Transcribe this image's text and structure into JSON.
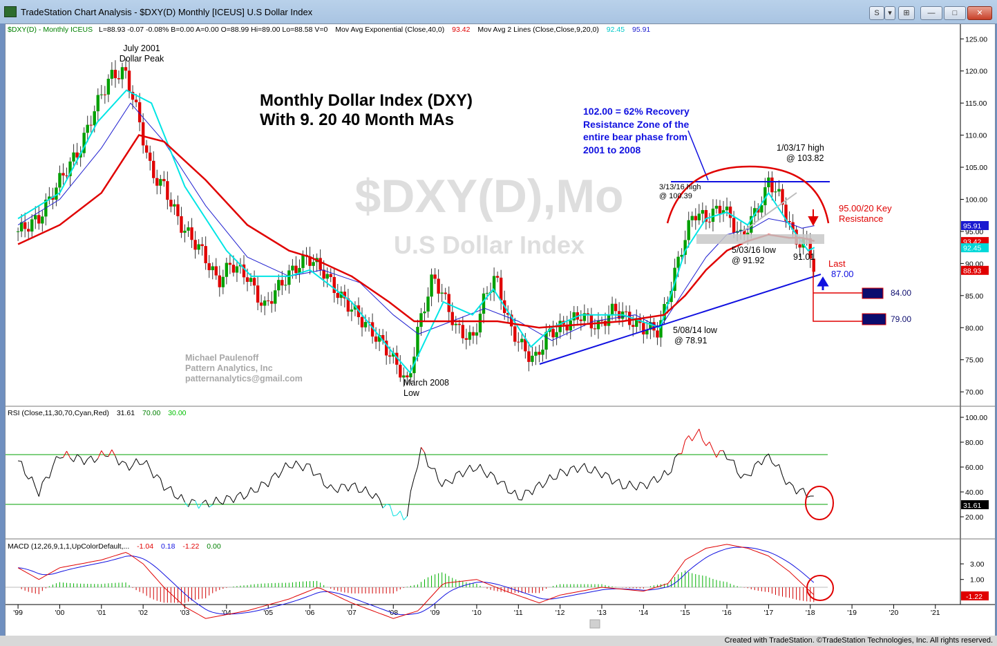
{
  "window": {
    "title": "TradeStation Chart Analysis - $DXY(D) Monthly [ICEUS] U.S Dollar Index",
    "buttons": [
      "S",
      "▾",
      "⊞",
      "—",
      "□",
      "✕"
    ]
  },
  "status_bar": "Created with TradeStation. ©TradeStation Technologies, Inc. All rights reserved.",
  "colors": {
    "up": "#00a000",
    "down": "#e00000",
    "ma9": "#00e5e5",
    "ma20": "#2020d0",
    "ma40": "#e00000",
    "annotation_blue": "#1010e0",
    "annotation_red": "#e00000",
    "target_box": "#0c0c6e"
  },
  "price_panel": {
    "header": {
      "symbol": "$DXY(D) - Monthly  ICEUS",
      "quote": "L=88.93  -0.07  -0.08%  B=0.00  A=0.00  O=88.99  Hi=89.00  Lo=88.58  V=0",
      "ma_label": "Mov Avg Exponential (Close,40,0)",
      "ma_value": "93.42",
      "ma2_label": "Mov Avg 2 Lines (Close,Close,9,20,0)",
      "ma2_value_a": "92.45",
      "ma2_value_b": "95.91"
    },
    "watermark_symbol": "$DXY(D),Mo",
    "watermark_name": "U.S Dollar Index",
    "chart_title_line1": "Monthly Dollar Index (DXY)",
    "chart_title_line2": "With 9. 20 40 Month MAs",
    "author": [
      "Michael Paulenoff",
      "Pattern Analytics, Inc",
      "patternanalytics@gmail.com"
    ],
    "annotations": {
      "peak": [
        "July 2001",
        "Dollar Peak"
      ],
      "low2008": [
        "March 2008",
        "Low"
      ],
      "recovery": [
        "102.00 = 62% Recovery",
        "Resistance Zone of the",
        "entire bear phase from",
        "2001 to 2008"
      ],
      "high2017": [
        "1/03/17 high",
        "@ 103.82"
      ],
      "high2016": [
        "3/13/16 high",
        "@ 100.39"
      ],
      "low2016": [
        "5/03/16 low",
        "@ 91.92"
      ],
      "low2014": [
        "5/08/14 low",
        "@ 78.91"
      ],
      "key_resistance": [
        "95.00/20 Key",
        "Resistance"
      ],
      "low91": "91.01",
      "last": "Last",
      "target87": "87.00",
      "target84": "84.00",
      "target79": "79.00"
    },
    "axis_badges": [
      {
        "text": "95.91",
        "color": "#1a1ad0"
      },
      {
        "text": "93.42",
        "color": "#e00000"
      },
      {
        "text": "92.45",
        "color": "#00d8d8"
      },
      {
        "text": "88.93",
        "color": "#e00000"
      }
    ]
  },
  "rsi_panel": {
    "header_label": "RSI (Close,11,30,70,Cyan,Red)",
    "header_value": "31.61",
    "overbought": "70.00",
    "oversold": "30.00",
    "last_badge": "31.61"
  },
  "macd_panel": {
    "header_label": "MACD (12,26,9,1,1,UpColorDefault,...",
    "macd_value": "-1.04",
    "signal_value": "0.18",
    "hist_value": "-1.22",
    "zero_value": "0.00",
    "last_badge": "-1.22"
  },
  "chart_data": {
    "type": "line",
    "title": "Monthly Dollar Index (DXY)",
    "subtitle": "With 9. 20 40 Month MAs",
    "price_axis": {
      "ticks": [
        "125.00",
        "120.00",
        "115.00",
        "110.00",
        "105.00",
        "100.00",
        "95.00",
        "90.00",
        "85.00",
        "80.00",
        "75.00",
        "70.00"
      ],
      "ylim": [
        67,
        126
      ]
    },
    "rsi_axis": {
      "ticks": [
        "100.00",
        "80.00",
        "60.00",
        "40.00",
        "20.00"
      ],
      "ylim": [
        5,
        105
      ]
    },
    "macd_axis": {
      "ticks": [
        "3.00",
        "1.00"
      ]
    },
    "x_ticks": [
      "'99",
      "'00",
      "'01",
      "'02",
      "'03",
      "'04",
      "'05",
      "'06",
      "'07",
      "'08",
      "'09",
      "'10",
      "'11",
      "'12",
      "'13",
      "'14",
      "'15",
      "'16",
      "'17",
      "'18",
      "'19",
      "'20",
      "'21"
    ],
    "x_range": [
      1998.7,
      2021.6
    ],
    "series": [
      {
        "kind": "close",
        "x": [
          1999.0,
          1999.5,
          2000.0,
          2000.5,
          2000.83,
          2001.2,
          2001.55,
          2001.8,
          2002.2,
          2002.5,
          2002.9,
          2003.4,
          2003.8,
          2004.1,
          2004.5,
          2004.9,
          2005.2,
          2005.6,
          2005.95,
          2006.3,
          2006.7,
          2007.0,
          2007.4,
          2007.8,
          2008.2,
          2008.35,
          2008.6,
          2008.95,
          2009.2,
          2009.5,
          2009.9,
          2010.2,
          2010.45,
          2010.8,
          2011.2,
          2011.4,
          2011.7,
          2012.0,
          2012.5,
          2012.9,
          2013.3,
          2013.7,
          2014.0,
          2014.36,
          2014.6,
          2014.9,
          2015.2,
          2015.5,
          2015.9,
          2016.2,
          2016.35,
          2016.6,
          2016.9,
          2017.0,
          2017.3,
          2017.6,
          2017.8,
          2017.95,
          2018.08
        ],
        "values": [
          95,
          97,
          103,
          108,
          114,
          119,
          120,
          115,
          104,
          102,
          96,
          92,
          87,
          90,
          88,
          83,
          86,
          89,
          91,
          89,
          85,
          83,
          80,
          77,
          73,
          71,
          80,
          88,
          85,
          80,
          78,
          85,
          88,
          80,
          76,
          75,
          79,
          80,
          82,
          80,
          83,
          81,
          80,
          79.5,
          85,
          92,
          98,
          97,
          99,
          95.5,
          94,
          97,
          100.5,
          103,
          100,
          94,
          93,
          93.5,
          89
        ]
      },
      {
        "name": "Mov Avg Exponential (Close,40,0)",
        "x": [
          1999.0,
          2000.0,
          2001.0,
          2001.9,
          2002.5,
          2003.5,
          2004.5,
          2005.5,
          2006.0,
          2007.0,
          2007.9,
          2008.5,
          2009.5,
          2010.5,
          2011.5,
          2012.5,
          2013.5,
          2014.5,
          2015.0,
          2015.5,
          2016.0,
          2016.5,
          2017.0,
          2017.5,
          2017.8,
          2018.1
        ],
        "values": [
          93,
          96,
          101,
          110,
          109,
          103,
          96,
          92,
          91,
          88,
          84,
          81,
          81,
          81,
          80,
          80.5,
          81,
          82,
          85,
          89,
          92,
          93.5,
          94.5,
          94,
          94,
          93.5
        ]
      },
      {
        "name": "Mov Avg 9",
        "x": [
          1999.0,
          2000.0,
          2000.9,
          2001.6,
          2002.2,
          2003.0,
          2004.0,
          2004.6,
          2005.5,
          2006.0,
          2007.0,
          2008.0,
          2008.4,
          2009.2,
          2009.9,
          2010.4,
          2011.3,
          2011.8,
          2012.5,
          2013.5,
          2014.4,
          2015.0,
          2015.5,
          2016.0,
          2016.5,
          2017.0,
          2017.5,
          2017.95,
          2018.1
        ],
        "values": [
          97,
          101,
          112,
          117,
          115,
          102,
          92,
          88,
          88,
          89,
          84,
          76,
          73,
          84,
          82,
          86,
          77,
          80,
          82,
          82,
          80,
          92,
          97,
          98,
          96,
          101,
          96,
          92,
          92.5
        ]
      },
      {
        "name": "Mov Avg 20",
        "x": [
          1999.0,
          2000.0,
          2001.0,
          2001.7,
          2002.5,
          2003.5,
          2004.5,
          2005.5,
          2006.3,
          2007.2,
          2008.0,
          2008.6,
          2009.4,
          2010.2,
          2011.0,
          2011.8,
          2012.8,
          2013.8,
          2014.4,
          2015.0,
          2015.5,
          2016.0,
          2016.6,
          2017.0,
          2017.4,
          2017.8,
          2018.1
        ],
        "values": [
          96,
          100,
          108,
          115,
          109,
          99,
          91,
          88,
          89,
          87,
          82,
          79,
          81,
          83,
          81,
          78,
          81,
          82,
          80,
          86,
          91,
          94.5,
          95.5,
          97,
          96.5,
          95.5,
          95.9
        ]
      },
      {
        "name": "RSI (Close,11,30,70,Cyan,Red)",
        "x": [
          1999.0,
          1999.5,
          2000.0,
          2000.7,
          2001.2,
          2001.6,
          2002.0,
          2002.5,
          2003.0,
          2003.5,
          2004.0,
          2004.5,
          2005.0,
          2005.5,
          2006.0,
          2006.5,
          2007.0,
          2007.5,
          2008.0,
          2008.3,
          2008.65,
          2008.9,
          2009.2,
          2009.6,
          2010.0,
          2010.5,
          2011.0,
          2011.5,
          2012.0,
          2012.5,
          2013.0,
          2013.5,
          2014.0,
          2014.6,
          2015.0,
          2015.3,
          2015.7,
          2016.0,
          2016.4,
          2016.9,
          2017.1,
          2017.5,
          2017.8,
          2018.0,
          2018.1
        ],
        "values": [
          65,
          40,
          70,
          65,
          72,
          60,
          65,
          45,
          32,
          30,
          34,
          38,
          48,
          62,
          60,
          42,
          45,
          38,
          24,
          18,
          75,
          60,
          45,
          55,
          60,
          50,
          35,
          45,
          55,
          60,
          55,
          45,
          45,
          55,
          80,
          88,
          72,
          70,
          50,
          68,
          66,
          45,
          40,
          38,
          31.61
        ]
      },
      {
        "name": "MACD (12,26,9)",
        "x": [
          1999.0,
          1999.5,
          2000.0,
          2001.0,
          2001.6,
          2002.0,
          2002.5,
          2003.0,
          2003.5,
          2004.5,
          2005.5,
          2006.2,
          2007.0,
          2008.0,
          2008.6,
          2009.2,
          2010.0,
          2010.7,
          2011.5,
          2012.0,
          2013.0,
          2014.0,
          2014.6,
          2015.0,
          2015.5,
          2016.0,
          2016.5,
          2017.0,
          2017.5,
          2018.1
        ],
        "values": [
          2.5,
          1,
          2.5,
          3.5,
          4.5,
          3,
          0,
          -2.5,
          -4,
          -3,
          -1.5,
          0,
          -2,
          -4,
          -3,
          0.5,
          1,
          -0.5,
          -2,
          -1,
          0,
          -0.5,
          0.5,
          3.5,
          5,
          5.5,
          5,
          4,
          2,
          -1.04
        ]
      }
    ]
  }
}
